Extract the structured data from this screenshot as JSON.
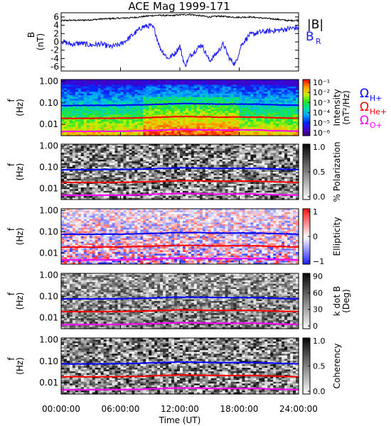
{
  "title": "ACE Mag 1999-171",
  "colors": {
    "total_field": "#000000",
    "radial_field": "#1a1aff",
    "proton_gyro": "#0000ff",
    "helium_gyro": "#ff0000",
    "oxygen_gyro": "#ff00ff"
  },
  "xaxis": {
    "label": "Time (UT)",
    "ticks": [
      "00:00:00",
      "06:00:00",
      "12:00:00",
      "18:00:00",
      "24:00:00"
    ],
    "range_hours": [
      0,
      24
    ]
  },
  "gyro_labels": {
    "h_symbol": "Ω",
    "h_sub": "H+",
    "he_symbol": "Ω",
    "he_sub": "He+",
    "o_symbol": "Ω",
    "o_sub": "O+"
  },
  "chart_data": [
    {
      "type": "line",
      "panel": "field",
      "ylabel": "B",
      "yunit": "(nT)",
      "ylim": [
        -7,
        7
      ],
      "yticks": [
        "6",
        "4",
        "2",
        "0",
        "-2",
        "-4",
        "-6"
      ],
      "legend": [
        "|B|",
        "B",
        "R"
      ],
      "series": [
        {
          "name": "|B|",
          "x": [
            0,
            1,
            2,
            3,
            4,
            5,
            6,
            7,
            8,
            9,
            10,
            11,
            12,
            13,
            14,
            15,
            16,
            17,
            18,
            19,
            20,
            21,
            22,
            23,
            24
          ],
          "values": [
            5.1,
            5.2,
            5.2,
            5.3,
            5.5,
            5.6,
            5.7,
            5.8,
            6.0,
            6.3,
            6.4,
            6.3,
            6.5,
            6.6,
            6.3,
            6.0,
            6.2,
            6.0,
            5.9,
            6.0,
            5.8,
            5.6,
            5.4,
            5.1,
            5.2
          ]
        },
        {
          "name": "B_R",
          "x": [
            0,
            1,
            2,
            3,
            4,
            5,
            6,
            6.8,
            7.6,
            8.2,
            9.0,
            9.4,
            10.0,
            10.8,
            11.5,
            12.0,
            12.5,
            13.0,
            13.6,
            14.2,
            15.0,
            15.8,
            16.4,
            17.0,
            17.6,
            18.2,
            19.0,
            20.0,
            21.0,
            22.0,
            23.0,
            24.0
          ],
          "values": [
            0.2,
            -0.6,
            -0.3,
            -0.8,
            -0.5,
            -1.2,
            -0.6,
            0.8,
            2.4,
            3.6,
            3.9,
            3.2,
            -1.5,
            -4.0,
            -2.8,
            -1.0,
            -5.8,
            -3.5,
            -2.0,
            -0.6,
            -4.6,
            -2.5,
            -0.5,
            -4.0,
            -5.4,
            -0.8,
            1.6,
            2.3,
            2.6,
            2.8,
            3.2,
            3.4
          ]
        }
      ]
    },
    {
      "type": "heatmap",
      "panel": "intensity",
      "ylabel": "f",
      "yunit": "(Hz)",
      "yticks": [
        "1.00",
        "0.10",
        "0.01"
      ],
      "colorbar": {
        "label": "Intensity",
        "unit": "(nT²/Hz)",
        "ticks": [
          "10⁻¹",
          "10⁻²",
          "10⁻³",
          "10⁻⁴",
          "10⁻⁵",
          "10⁻⁶"
        ]
      }
    },
    {
      "type": "heatmap",
      "panel": "polarization",
      "ylabel": "f",
      "yunit": "(Hz)",
      "yticks": [
        "1.00",
        "0.10",
        "0.01"
      ],
      "colorbar": {
        "label": "% Polarization",
        "unit": "",
        "ticks": [
          "1.0",
          "0.5",
          "0.0"
        ]
      }
    },
    {
      "type": "heatmap",
      "panel": "ellipticity",
      "ylabel": "f",
      "yunit": "(Hz)",
      "yticks": [
        "1.00",
        "0.10",
        "0.01"
      ],
      "colorbar": {
        "label": "Ellipticity",
        "unit": "",
        "ticks": [
          "1",
          "0",
          "−1"
        ]
      }
    },
    {
      "type": "heatmap",
      "panel": "kdotb",
      "ylabel": "f",
      "yunit": "(Hz)",
      "yticks": [
        "1.00",
        "0.10",
        "0.01"
      ],
      "colorbar": {
        "label": "k dot B",
        "unit": "(Deg)",
        "ticks": [
          "90",
          "60",
          "30",
          "0"
        ]
      }
    },
    {
      "type": "heatmap",
      "panel": "coherency",
      "ylabel": "f",
      "yunit": "(Hz)",
      "yticks": [
        "1.00",
        "0.10",
        "0.01"
      ],
      "colorbar": {
        "label": "Coherency",
        "unit": "",
        "ticks": [
          "1.0",
          "0.5",
          "0.0"
        ]
      }
    }
  ],
  "gyro_lines": {
    "x": [
      0,
      2,
      4,
      6,
      8,
      10,
      12,
      14,
      16,
      18,
      20,
      22,
      24
    ],
    "H_hz": [
      0.075,
      0.075,
      0.076,
      0.077,
      0.08,
      0.086,
      0.092,
      0.09,
      0.086,
      0.088,
      0.086,
      0.08,
      0.076
    ],
    "He_hz": [
      0.019,
      0.019,
      0.019,
      0.0193,
      0.02,
      0.0215,
      0.023,
      0.0225,
      0.0215,
      0.022,
      0.0215,
      0.02,
      0.019
    ],
    "O_hz": [
      0.0047,
      0.0047,
      0.0048,
      0.0048,
      0.005,
      0.0054,
      0.0058,
      0.0056,
      0.0054,
      0.0055,
      0.0054,
      0.005,
      0.0048
    ]
  }
}
